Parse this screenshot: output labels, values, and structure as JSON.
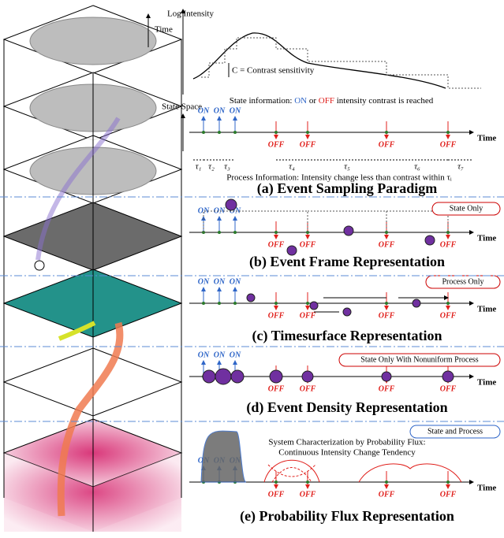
{
  "left_stack": {
    "time": "Time"
  },
  "panel_a": {
    "y_label": "Log Intensity",
    "state_space": "State Space",
    "contrast": "C = Contrast sensitivity",
    "state_info": {
      "prefix": "State information: ",
      "on": "ON",
      "mid": " or ",
      "off": "OFF",
      "suffix": " intensity contrast is reached"
    },
    "on": "ON",
    "off": "OFF",
    "time": "Time",
    "taus": [
      "τ₁",
      "τ₂",
      "τ₃",
      "τ₄",
      "τ₅",
      "τ₆",
      "τ₇"
    ],
    "process_info": "Process Information: Intensity change less than contrast within τᵢ",
    "title": "(a) Event Sampling Paradigm"
  },
  "panel_b": {
    "tag": "State Only",
    "on": "ON",
    "off": "OFF",
    "time": "Time",
    "title": "(b) Event Frame Representation"
  },
  "panel_c": {
    "tag": "Process Only",
    "on": "ON",
    "off": "OFF",
    "time": "Time",
    "title": "(c) Timesurface Representation"
  },
  "panel_d": {
    "tag": "State Only With Nonuniform Process",
    "on": "ON",
    "off": "OFF",
    "time": "Time",
    "title": "(d) Event Density Representation"
  },
  "panel_e": {
    "tag": "State and Process",
    "desc": [
      "System Characterization by Probability Flux:",
      "Continuous Intensity Change Tendency"
    ],
    "on": "ON",
    "off": "OFF",
    "time": "Time",
    "title": "(e) Probability Flux Representation"
  }
}
